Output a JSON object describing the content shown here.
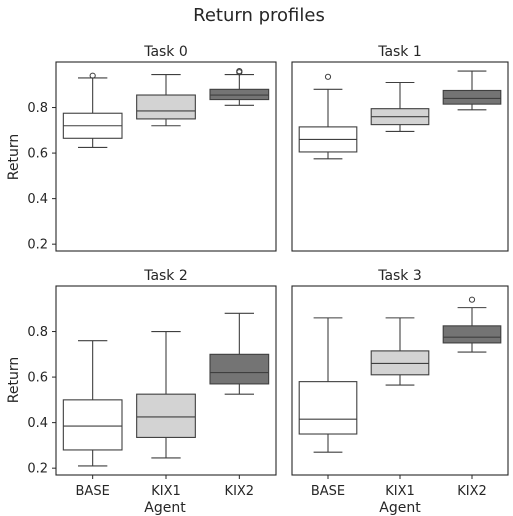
{
  "chart_data": {
    "type": "box",
    "title": "Return profiles",
    "xlabel": "Agent",
    "ylabel": "Return",
    "ylim": [
      0.17,
      1.0
    ],
    "yticks": [
      0.2,
      0.4,
      0.6,
      0.8
    ],
    "categories": [
      "BASE",
      "KIX1",
      "KIX2"
    ],
    "colors": {
      "BASE": "#ffffff",
      "KIX1": "#d3d3d3",
      "KIX2": "#747474"
    },
    "grid": false,
    "legend": "none",
    "panels": [
      {
        "title": "Task 0",
        "boxes": [
          {
            "agent": "BASE",
            "whisker_low": 0.625,
            "q1": 0.665,
            "median": 0.72,
            "q3": 0.775,
            "whisker_high": 0.93,
            "outliers": [
              0.94
            ]
          },
          {
            "agent": "KIX1",
            "whisker_low": 0.72,
            "q1": 0.75,
            "median": 0.785,
            "q3": 0.855,
            "whisker_high": 0.945,
            "outliers": []
          },
          {
            "agent": "KIX2",
            "whisker_low": 0.81,
            "q1": 0.835,
            "median": 0.855,
            "q3": 0.88,
            "whisker_high": 0.945,
            "outliers": [
              0.955,
              0.96
            ]
          }
        ]
      },
      {
        "title": "Task 1",
        "boxes": [
          {
            "agent": "BASE",
            "whisker_low": 0.575,
            "q1": 0.605,
            "median": 0.66,
            "q3": 0.715,
            "whisker_high": 0.88,
            "outliers": [
              0.935
            ]
          },
          {
            "agent": "KIX1",
            "whisker_low": 0.695,
            "q1": 0.725,
            "median": 0.76,
            "q3": 0.795,
            "whisker_high": 0.91,
            "outliers": []
          },
          {
            "agent": "KIX2",
            "whisker_low": 0.79,
            "q1": 0.815,
            "median": 0.84,
            "q3": 0.875,
            "whisker_high": 0.96,
            "outliers": []
          }
        ]
      },
      {
        "title": "Task 2",
        "boxes": [
          {
            "agent": "BASE",
            "whisker_low": 0.21,
            "q1": 0.28,
            "median": 0.385,
            "q3": 0.5,
            "whisker_high": 0.76,
            "outliers": []
          },
          {
            "agent": "KIX1",
            "whisker_low": 0.245,
            "q1": 0.335,
            "median": 0.425,
            "q3": 0.525,
            "whisker_high": 0.8,
            "outliers": []
          },
          {
            "agent": "KIX2",
            "whisker_low": 0.525,
            "q1": 0.57,
            "median": 0.62,
            "q3": 0.7,
            "whisker_high": 0.88,
            "outliers": []
          }
        ]
      },
      {
        "title": "Task 3",
        "boxes": [
          {
            "agent": "BASE",
            "whisker_low": 0.27,
            "q1": 0.35,
            "median": 0.415,
            "q3": 0.58,
            "whisker_high": 0.86,
            "outliers": []
          },
          {
            "agent": "KIX1",
            "whisker_low": 0.565,
            "q1": 0.61,
            "median": 0.66,
            "q3": 0.715,
            "whisker_high": 0.86,
            "outliers": []
          },
          {
            "agent": "KIX2",
            "whisker_low": 0.71,
            "q1": 0.75,
            "median": 0.775,
            "q3": 0.825,
            "whisker_high": 0.905,
            "outliers": [
              0.94
            ]
          }
        ]
      }
    ]
  }
}
